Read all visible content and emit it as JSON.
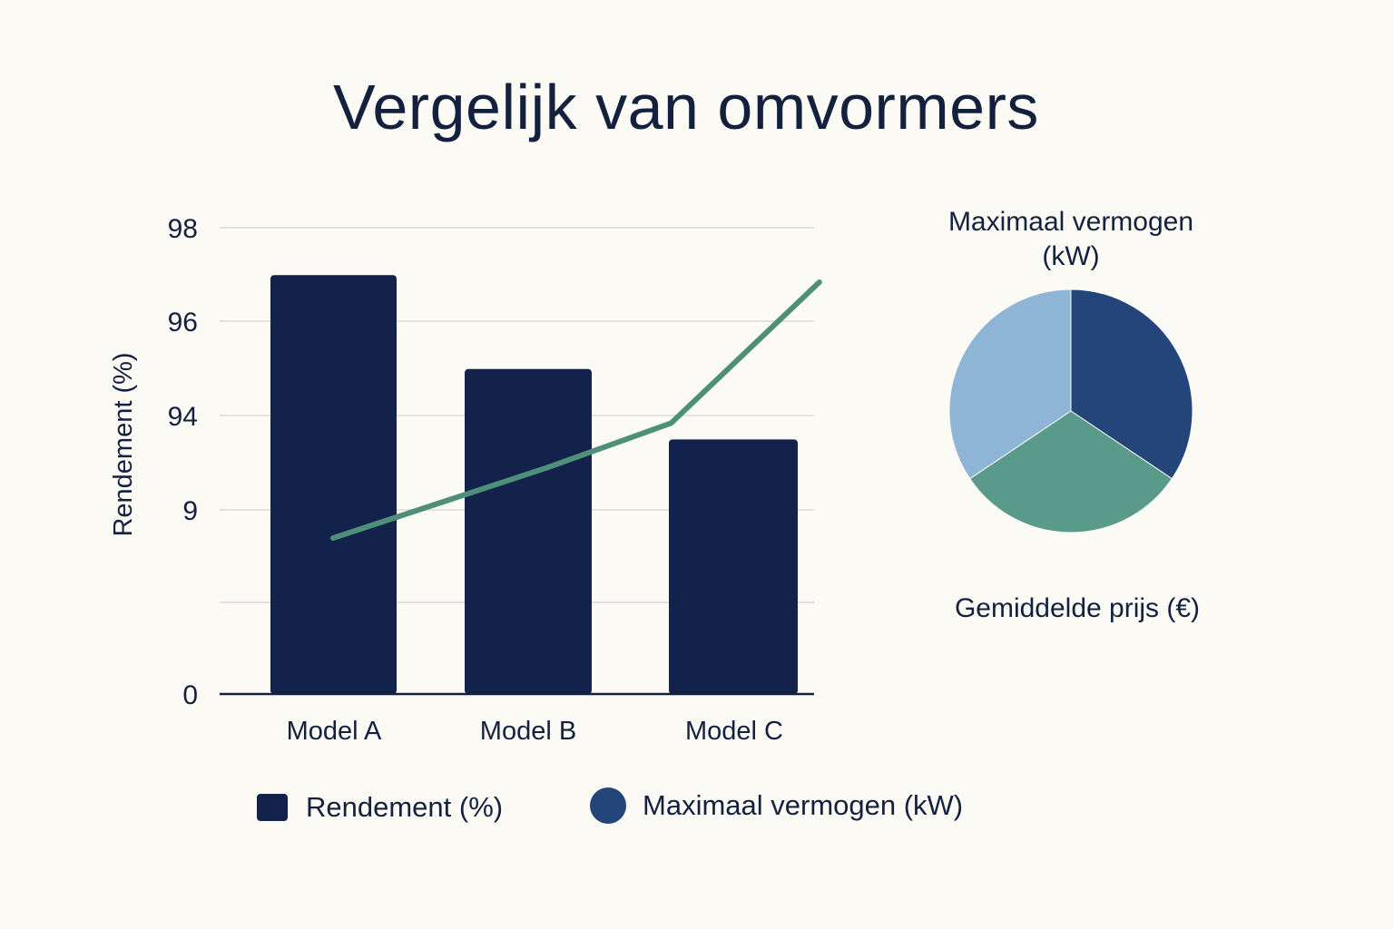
{
  "title": "Vergelijk van omvormers",
  "colors": {
    "background": "#fcfaf5",
    "bar": "#12224a",
    "line": "#4e8f7a",
    "grid": "#e2e2e2",
    "pie": [
      "#24457a",
      "#5a9a8a",
      "#8fb5d6"
    ]
  },
  "chart_data": [
    {
      "type": "bar",
      "categories": [
        "Model A",
        "Model B",
        "Model C"
      ],
      "ylabel": "Rendement (%)",
      "y_tick_labels": [
        "98",
        "96",
        "94",
        "9",
        "",
        "0"
      ],
      "grid": true,
      "series": [
        {
          "name": "Rendement (%)",
          "type": "bar",
          "values": [
            97,
            95,
            93.5
          ]
        },
        {
          "name": "Maximaal vermogen (kW)",
          "type": "line",
          "points": [
            [
              0,
              91.4
            ],
            [
              1.07,
              92.9
            ],
            [
              1.69,
              93.85
            ],
            [
              2.43,
              96.85
            ]
          ]
        }
      ],
      "legend": {
        "position": "bottom",
        "items": [
          {
            "label": "Rendement (%)",
            "marker": "square"
          },
          {
            "label": "Maximaal vermogen (kW)",
            "marker": "circle"
          }
        ]
      }
    },
    {
      "type": "pie",
      "title_top": "Maximaal vermogen\n(kW)",
      "title_top_lines": [
        "Maximaal vermogen",
        "(kW)"
      ],
      "caption_bottom": "Gemiddelde prijs (€)",
      "shares_percent": [
        34.4,
        31.2,
        34.4
      ]
    }
  ]
}
